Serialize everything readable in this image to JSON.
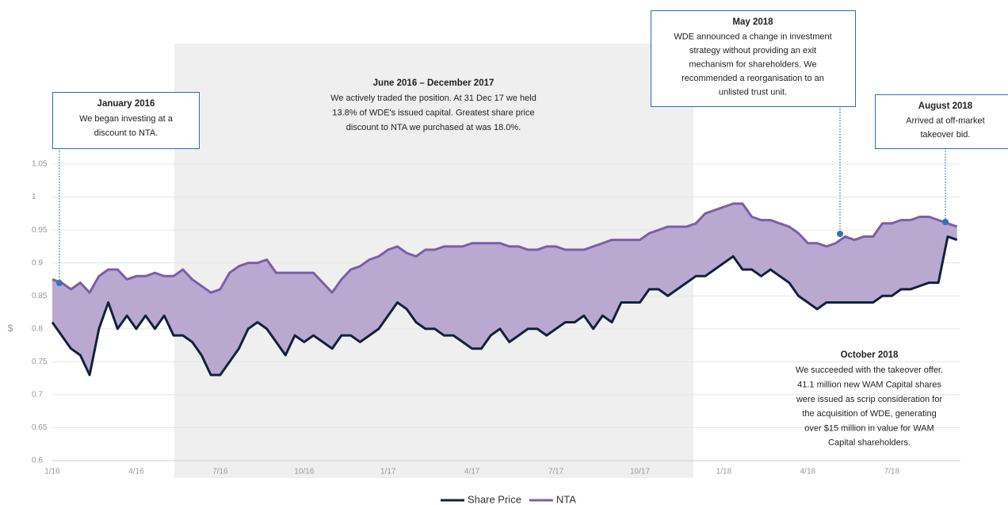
{
  "chart_data": {
    "type": "line",
    "ylabel": "$",
    "categories": [
      "1/16",
      null,
      null,
      null,
      null,
      null,
      null,
      null,
      null,
      "4/16",
      null,
      null,
      null,
      null,
      null,
      null,
      null,
      null,
      "7/16",
      null,
      null,
      null,
      null,
      null,
      null,
      null,
      null,
      "10/16",
      null,
      null,
      null,
      null,
      null,
      null,
      null,
      null,
      "1/17",
      null,
      null,
      null,
      null,
      null,
      null,
      null,
      null,
      "4/17",
      null,
      null,
      null,
      null,
      null,
      null,
      null,
      null,
      "7/17",
      null,
      null,
      null,
      null,
      null,
      null,
      null,
      null,
      "10/17",
      null,
      null,
      null,
      null,
      null,
      null,
      null,
      null,
      "1/18",
      null,
      null,
      null,
      null,
      null,
      null,
      null,
      null,
      "4/18",
      null,
      null,
      null,
      null,
      null,
      null,
      null,
      null,
      "7/18",
      null,
      null,
      null,
      null,
      null,
      null,
      null
    ],
    "series": [
      {
        "name": "Share Price",
        "color": "#14213d",
        "values": [
          0.81,
          0.79,
          0.77,
          0.76,
          0.73,
          0.8,
          0.84,
          0.8,
          0.82,
          0.8,
          0.82,
          0.8,
          0.82,
          0.79,
          0.79,
          0.78,
          0.76,
          0.73,
          0.73,
          0.75,
          0.77,
          0.8,
          0.81,
          0.8,
          0.78,
          0.76,
          0.79,
          0.78,
          0.79,
          0.78,
          0.77,
          0.79,
          0.79,
          0.78,
          0.79,
          0.8,
          0.82,
          0.84,
          0.83,
          0.81,
          0.8,
          0.8,
          0.79,
          0.79,
          0.78,
          0.77,
          0.77,
          0.79,
          0.8,
          0.78,
          0.79,
          0.8,
          0.8,
          0.79,
          0.8,
          0.81,
          0.81,
          0.82,
          0.8,
          0.82,
          0.81,
          0.84,
          0.84,
          0.84,
          0.86,
          0.86,
          0.85,
          0.86,
          0.87,
          0.88,
          0.88,
          0.89,
          0.9,
          0.91,
          0.89,
          0.89,
          0.88,
          0.89,
          0.88,
          0.87,
          0.85,
          0.84,
          0.83,
          0.84,
          0.84,
          0.84,
          0.84,
          0.84,
          0.84,
          0.85,
          0.85,
          0.86,
          0.86,
          0.865,
          0.87,
          0.87,
          0.94,
          0.935
        ]
      },
      {
        "name": "NTA",
        "color": "#7b5ea7",
        "values": [
          0.875,
          0.87,
          0.86,
          0.87,
          0.855,
          0.88,
          0.89,
          0.89,
          0.875,
          0.88,
          0.88,
          0.885,
          0.88,
          0.88,
          0.89,
          0.875,
          0.865,
          0.855,
          0.86,
          0.885,
          0.895,
          0.9,
          0.9,
          0.905,
          0.885,
          0.885,
          0.885,
          0.885,
          0.885,
          0.87,
          0.855,
          0.875,
          0.89,
          0.895,
          0.905,
          0.91,
          0.92,
          0.925,
          0.915,
          0.91,
          0.92,
          0.92,
          0.925,
          0.925,
          0.925,
          0.93,
          0.93,
          0.93,
          0.93,
          0.925,
          0.925,
          0.92,
          0.92,
          0.925,
          0.925,
          0.92,
          0.92,
          0.92,
          0.925,
          0.93,
          0.935,
          0.935,
          0.935,
          0.935,
          0.945,
          0.95,
          0.955,
          0.955,
          0.955,
          0.96,
          0.975,
          0.98,
          0.985,
          0.99,
          0.99,
          0.97,
          0.965,
          0.965,
          0.96,
          0.955,
          0.945,
          0.93,
          0.93,
          0.925,
          0.93,
          0.94,
          0.935,
          0.94,
          0.94,
          0.96,
          0.96,
          0.965,
          0.965,
          0.97,
          0.97,
          0.965,
          0.96,
          0.955
        ]
      }
    ],
    "fill_color": "#b9a9d0",
    "ylim": [
      0.6,
      1.05
    ],
    "yticks": [
      0.6,
      0.65,
      0.7,
      0.75,
      0.8,
      0.85,
      0.9,
      0.95,
      1,
      1.05
    ],
    "grid": true,
    "legend": "bottom",
    "annotations": [
      {
        "title": "January 2016",
        "lines": [
          "We began investing at a",
          "discount to NTA."
        ]
      },
      {
        "title": "June 2016 – December 2017",
        "lines": [
          "We actively traded the position. At 31 Dec 17 we held",
          "13.8% of WDE's issued capital. Greatest share price",
          "discount to NTA we purchased at was 18.0%."
        ]
      },
      {
        "title": "May 2018",
        "lines": [
          "WDE announced a change in investment",
          "strategy without providing an exit",
          "mechanism for shareholders. We",
          "recommended a reorganisation to an",
          "unlisted trust unit."
        ]
      },
      {
        "title": "August 2018",
        "lines": [
          "Arrived at off-market",
          "takeover bid."
        ]
      },
      {
        "title": "October 2018",
        "lines": [
          "We succeeded with the takeover offer.",
          "41.1 million new WAM Capital shares",
          "were issued as scrip consideration for",
          "the acquisition of WDE, generating",
          "over $15 million in value for WAM",
          "Capital shareholders."
        ]
      }
    ]
  }
}
